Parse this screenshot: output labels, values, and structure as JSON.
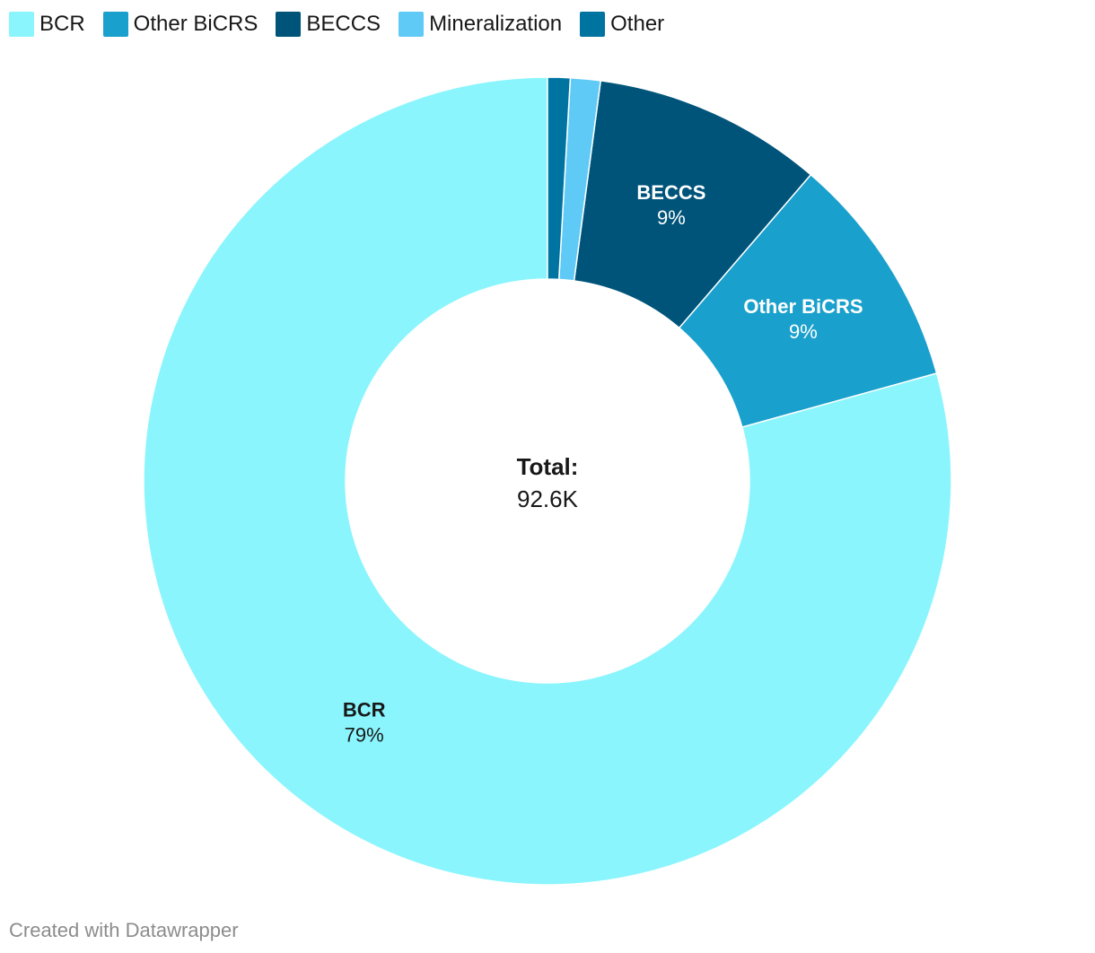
{
  "chart_data": {
    "type": "pie",
    "variant": "donut",
    "slices": [
      {
        "label": "BCR",
        "share": 0.793,
        "pct_label": "79%",
        "color": "#8af5fd",
        "label_color": "#181818"
      },
      {
        "label": "Other BiCRS",
        "share": 0.094,
        "pct_label": "9%",
        "color": "#1aa0cc",
        "label_color": "#ffffff"
      },
      {
        "label": "BECCS",
        "share": 0.092,
        "pct_label": "9%",
        "color": "#00547a",
        "label_color": "#ffffff"
      },
      {
        "label": "Mineralization",
        "share": 0.012,
        "pct_label": "",
        "color": "#5fcaf6",
        "label_color": "#ffffff"
      },
      {
        "label": "Other",
        "share": 0.009,
        "pct_label": "",
        "color": "#0074a1",
        "label_color": "#ffffff"
      }
    ],
    "legend": {
      "placement": "top-left"
    },
    "center_text": {
      "label": "Total:",
      "value": "92.6K"
    }
  },
  "footer": {
    "credit": "Created with Datawrapper"
  }
}
